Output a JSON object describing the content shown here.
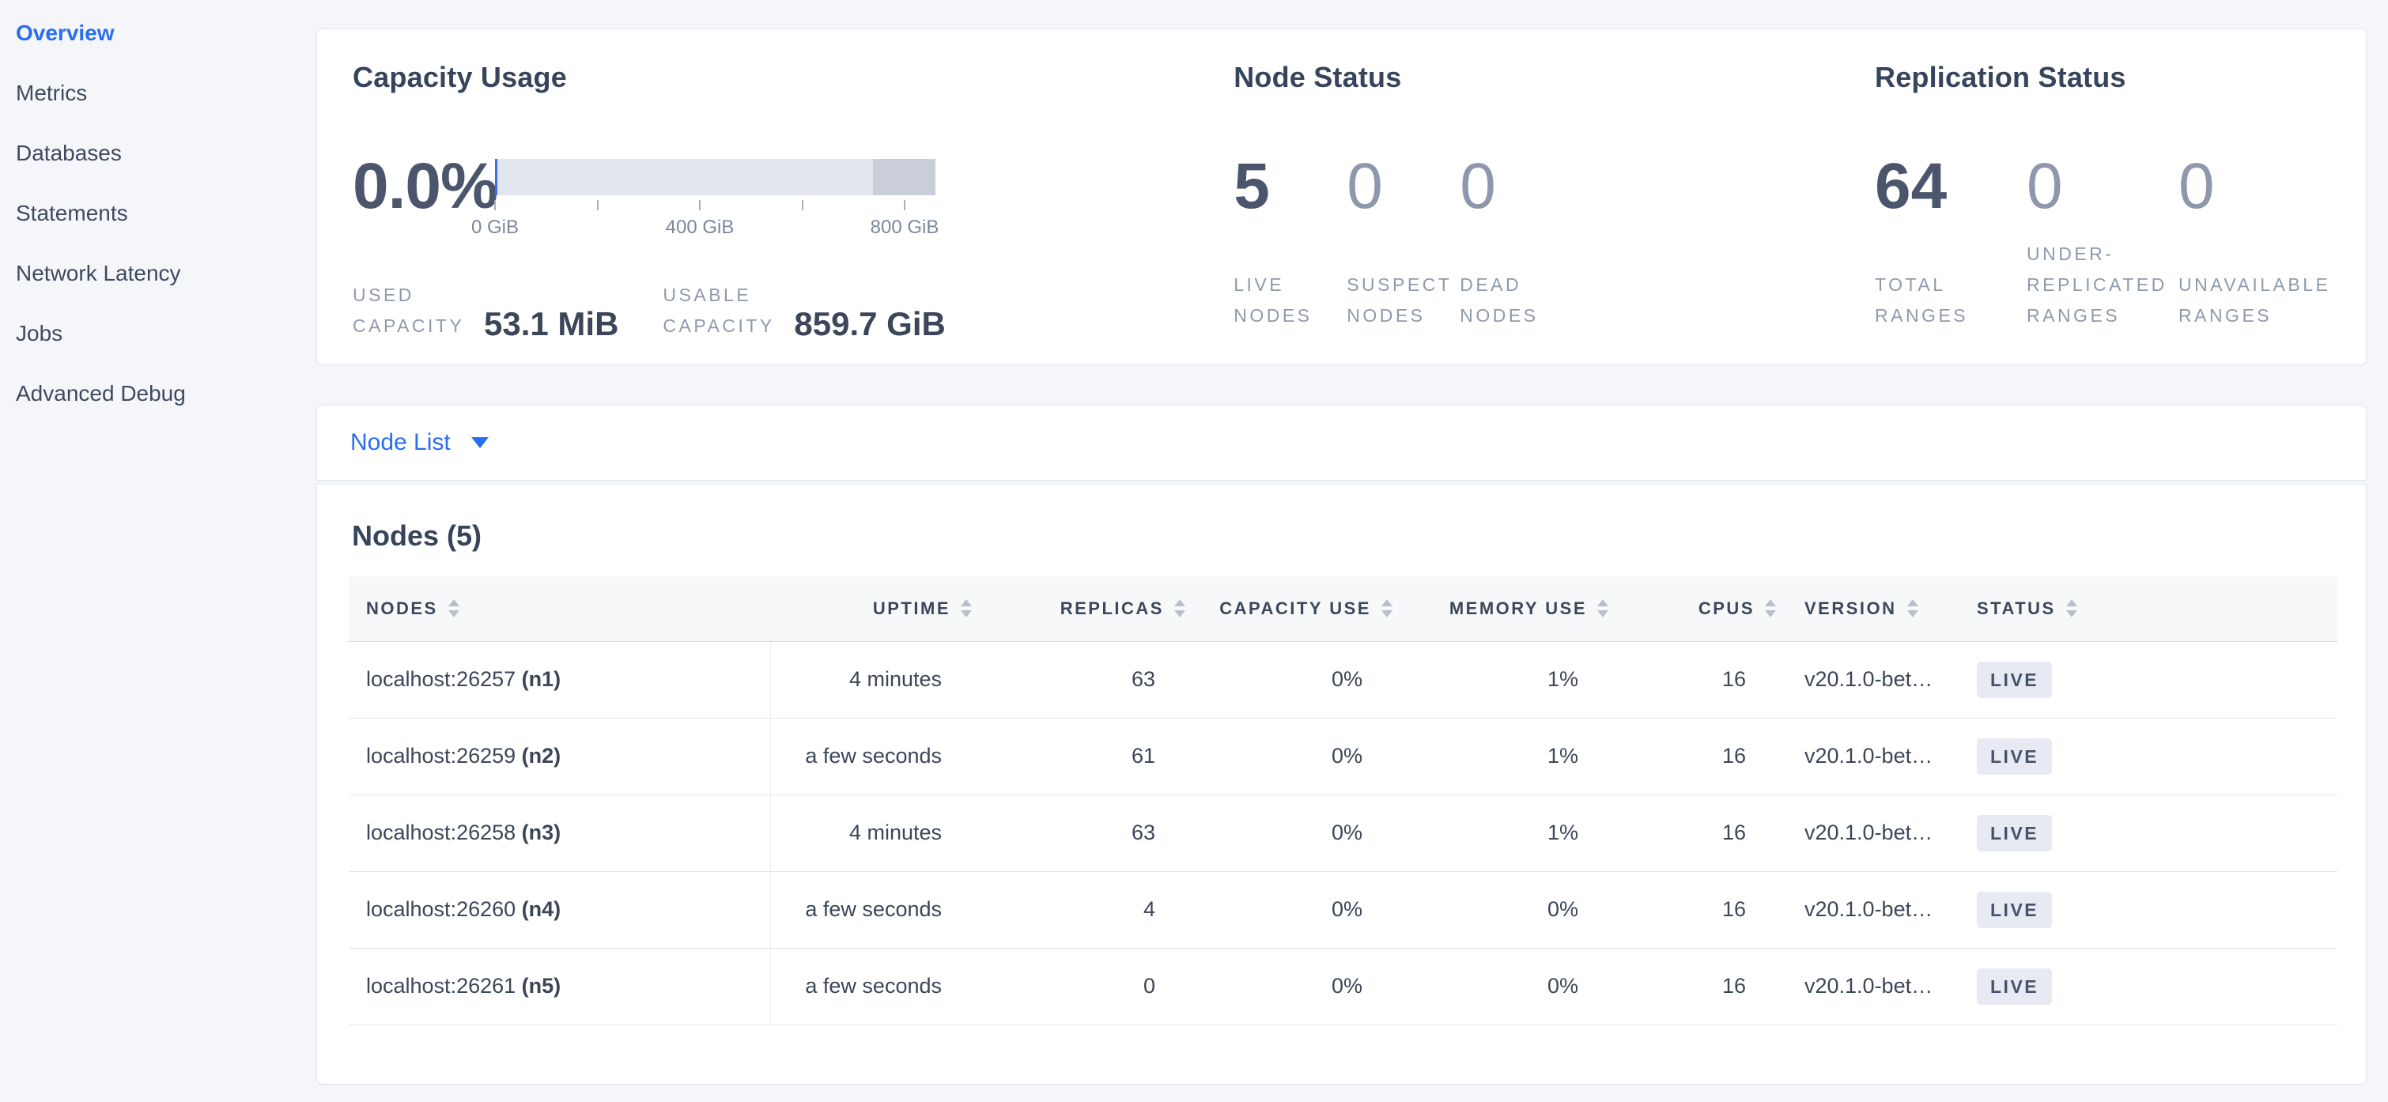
{
  "sidebar": {
    "items": [
      {
        "label": "Overview",
        "active": true
      },
      {
        "label": "Metrics"
      },
      {
        "label": "Databases"
      },
      {
        "label": "Statements"
      },
      {
        "label": "Network Latency"
      },
      {
        "label": "Jobs"
      },
      {
        "label": "Advanced Debug"
      }
    ]
  },
  "summary": {
    "capacity": {
      "title": "Capacity Usage",
      "percent": "0.0%",
      "bar": {
        "used_percent": 0.6,
        "reserved_start_percent": 85.8,
        "ticks": [
          {
            "pos": 0,
            "label": "0 GiB"
          },
          {
            "pos": 23.25,
            "label": ""
          },
          {
            "pos": 46.5,
            "label": "400 GiB"
          },
          {
            "pos": 69.75,
            "label": ""
          },
          {
            "pos": 93,
            "label": "800 GiB"
          }
        ]
      },
      "stats": [
        {
          "label": "USED CAPACITY",
          "value": "53.1 MiB"
        },
        {
          "label": "USABLE CAPACITY",
          "value": "859.7 GiB"
        }
      ]
    },
    "node_status": {
      "title": "Node Status",
      "stats": [
        {
          "value": "5",
          "label": "LIVE NODES",
          "emph": true
        },
        {
          "value": "0",
          "label": "SUSPECT NODES"
        },
        {
          "value": "0",
          "label": "DEAD NODES"
        }
      ]
    },
    "replication": {
      "title": "Replication Status",
      "stats": [
        {
          "value": "64",
          "label": "TOTAL RANGES",
          "emph": true
        },
        {
          "value": "0",
          "label": "UNDER-REPLICATED RANGES"
        },
        {
          "value": "0",
          "label": "UNAVAILABLE RANGES"
        }
      ]
    }
  },
  "view_switcher": {
    "label": "Node List"
  },
  "nodes": {
    "title": "Nodes (5)",
    "columns": [
      {
        "label": "NODES",
        "align": "left",
        "key": "nodes"
      },
      {
        "label": "UPTIME",
        "align": "right",
        "key": "uptime"
      },
      {
        "label": "REPLICAS",
        "align": "right",
        "key": "replicas"
      },
      {
        "label": "CAPACITY USE",
        "align": "right",
        "key": "capacity"
      },
      {
        "label": "MEMORY USE",
        "align": "right",
        "key": "memory"
      },
      {
        "label": "CPUS",
        "align": "right",
        "key": "cpus"
      },
      {
        "label": "VERSION",
        "align": "left",
        "key": "version"
      },
      {
        "label": "STATUS",
        "align": "left",
        "key": "status"
      }
    ],
    "rows": [
      {
        "address": "localhost:26257",
        "node_id": "(n1)",
        "uptime": "4 minutes",
        "replicas": "63",
        "capacity_use": "0%",
        "memory_use": "1%",
        "cpus": "16",
        "version": "v20.1.0-bet…",
        "status": "LIVE"
      },
      {
        "address": "localhost:26259",
        "node_id": "(n2)",
        "uptime": "a few seconds",
        "replicas": "61",
        "capacity_use": "0%",
        "memory_use": "1%",
        "cpus": "16",
        "version": "v20.1.0-bet…",
        "status": "LIVE"
      },
      {
        "address": "localhost:26258",
        "node_id": "(n3)",
        "uptime": "4 minutes",
        "replicas": "63",
        "capacity_use": "0%",
        "memory_use": "1%",
        "cpus": "16",
        "version": "v20.1.0-bet…",
        "status": "LIVE"
      },
      {
        "address": "localhost:26260",
        "node_id": "(n4)",
        "uptime": "a few seconds",
        "replicas": "4",
        "capacity_use": "0%",
        "memory_use": "0%",
        "cpus": "16",
        "version": "v20.1.0-bet…",
        "status": "LIVE"
      },
      {
        "address": "localhost:26261",
        "node_id": "(n5)",
        "uptime": "a few seconds",
        "replicas": "0",
        "capacity_use": "0%",
        "memory_use": "0%",
        "cpus": "16",
        "version": "v20.1.0-bet…",
        "status": "LIVE"
      }
    ]
  },
  "colors": {
    "accent_blue": "#2a6df0",
    "bar_track": "#e3e6ee",
    "bar_reserved": "#c9ced9",
    "bar_used": "#3d6fe8",
    "badge_bg": "#e7eaf2",
    "page_bg": "#f5f6fa"
  }
}
